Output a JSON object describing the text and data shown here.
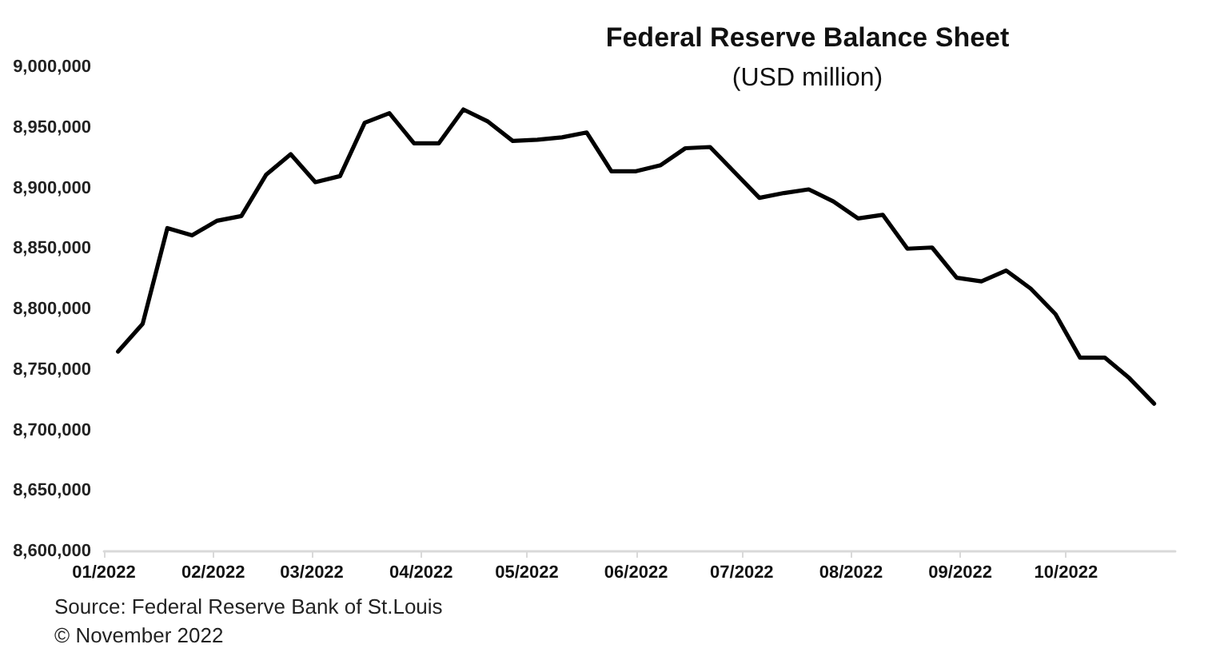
{
  "chart_data": {
    "type": "line",
    "title": "Federal Reserve Balance Sheet",
    "subtitle": "(USD million)",
    "annotations": [
      "Source: Federal Reserve Bank of St.Louis",
      "© November 2022"
    ],
    "x": [
      "2022-01-05",
      "2022-01-12",
      "2022-01-19",
      "2022-01-26",
      "2022-02-02",
      "2022-02-09",
      "2022-02-16",
      "2022-02-23",
      "2022-03-02",
      "2022-03-09",
      "2022-03-16",
      "2022-03-23",
      "2022-03-30",
      "2022-04-06",
      "2022-04-13",
      "2022-04-20",
      "2022-04-27",
      "2022-05-04",
      "2022-05-11",
      "2022-05-18",
      "2022-05-25",
      "2022-06-01",
      "2022-06-08",
      "2022-06-15",
      "2022-06-22",
      "2022-06-29",
      "2022-07-06",
      "2022-07-13",
      "2022-07-20",
      "2022-07-27",
      "2022-08-03",
      "2022-08-10",
      "2022-08-17",
      "2022-08-24",
      "2022-08-31",
      "2022-09-07",
      "2022-09-14",
      "2022-09-21",
      "2022-09-28",
      "2022-10-05",
      "2022-10-12",
      "2022-10-19",
      "2022-10-26"
    ],
    "series": [
      {
        "color": "#000000",
        "values": [
          8765000,
          8788000,
          8867000,
          8861000,
          8873000,
          8877000,
          8911000,
          8928000,
          8905000,
          8910000,
          8954000,
          8962000,
          8937000,
          8937000,
          8965000,
          8955000,
          8939000,
          8940000,
          8942000,
          8946000,
          8914000,
          8914000,
          8919000,
          8933000,
          8934000,
          8913000,
          8892000,
          8896000,
          8899000,
          8889000,
          8875000,
          8878000,
          8850000,
          8851000,
          8826000,
          8823000,
          8832000,
          8817000,
          8796000,
          8760000,
          8760000,
          8743000,
          8722000
        ]
      }
    ],
    "xlim": [
      "2022-01-01",
      "2022-11-01"
    ],
    "xticks": [
      {
        "value": "2022-01-01",
        "label": "01/2022"
      },
      {
        "value": "2022-02-01",
        "label": "02/2022"
      },
      {
        "value": "2022-03-01",
        "label": "03/2022"
      },
      {
        "value": "2022-04-01",
        "label": "04/2022"
      },
      {
        "value": "2022-05-01",
        "label": "05/2022"
      },
      {
        "value": "2022-06-01",
        "label": "06/2022"
      },
      {
        "value": "2022-07-01",
        "label": "07/2022"
      },
      {
        "value": "2022-08-01",
        "label": "08/2022"
      },
      {
        "value": "2022-09-01",
        "label": "09/2022"
      },
      {
        "value": "2022-10-01",
        "label": "10/2022"
      }
    ],
    "ylim": [
      8600000,
      9000000
    ],
    "yticks": [
      {
        "value": 8600000,
        "label": "8,600,000"
      },
      {
        "value": 8650000,
        "label": "8,650,000"
      },
      {
        "value": 8700000,
        "label": "8,700,000"
      },
      {
        "value": 8750000,
        "label": "8,750,000"
      },
      {
        "value": 8800000,
        "label": "8,800,000"
      },
      {
        "value": 8850000,
        "label": "8,850,000"
      },
      {
        "value": 8900000,
        "label": "8,900,000"
      },
      {
        "value": 8950000,
        "label": "8,950,000"
      },
      {
        "value": 9000000,
        "label": "9,000,000"
      }
    ],
    "grid": false,
    "marker": "none",
    "line_style": "solid"
  }
}
